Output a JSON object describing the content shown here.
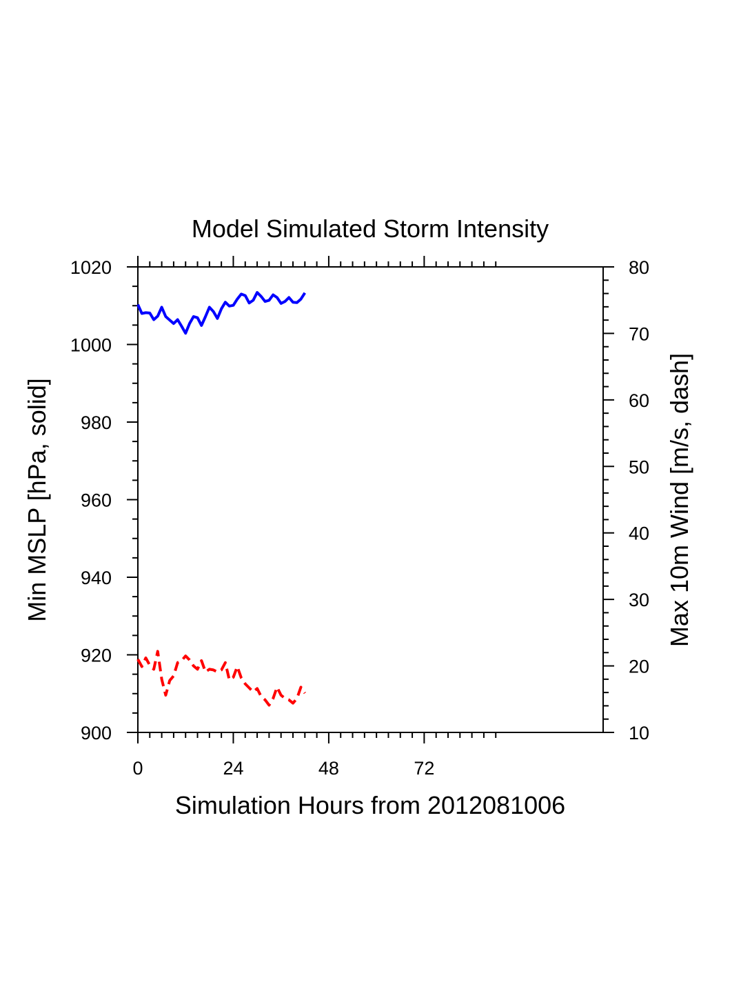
{
  "chart_data": {
    "type": "line",
    "title": "Model Simulated Storm Intensity",
    "xlabel": "Simulation Hours from 2012081006",
    "ylabel_left": "Min MSLP  [hPa, solid]",
    "ylabel_right": "Max 10m Wind  [m/s, dash]",
    "xlim": [
      0,
      117
    ],
    "ylim_left": [
      900,
      1020
    ],
    "ylim_right": [
      10,
      80
    ],
    "x_ticks": [
      0,
      24,
      48,
      72
    ],
    "y_left_ticks": [
      900,
      920,
      940,
      960,
      980,
      1000,
      1020
    ],
    "y_right_ticks": [
      10,
      20,
      30,
      40,
      50,
      60,
      70,
      80
    ],
    "grid": false,
    "series": [
      {
        "axis": "left",
        "style": "solid",
        "color": "#0000ff",
        "x": [
          0,
          1,
          2,
          3,
          4,
          5,
          6,
          7,
          8,
          9,
          10,
          11,
          12,
          13,
          14,
          15,
          16,
          17,
          18,
          19,
          20,
          21,
          22,
          23,
          24,
          25,
          26,
          27,
          28,
          29,
          30,
          31,
          32,
          33,
          34,
          35,
          36,
          37,
          38,
          39,
          40,
          41,
          42
        ],
        "values": [
          1010.3,
          1008.0,
          1008.2,
          1008.1,
          1006.4,
          1007.3,
          1009.6,
          1007.2,
          1006.3,
          1005.4,
          1006.4,
          1004.7,
          1002.9,
          1005.4,
          1007.2,
          1006.9,
          1004.9,
          1007.2,
          1009.6,
          1008.5,
          1006.7,
          1009.2,
          1010.9,
          1009.9,
          1010.1,
          1011.7,
          1013.0,
          1012.6,
          1010.7,
          1011.4,
          1013.4,
          1012.4,
          1011.1,
          1011.4,
          1012.8,
          1012.1,
          1010.6,
          1011.1,
          1012.1,
          1010.9,
          1010.8,
          1011.7,
          1013.3
        ]
      },
      {
        "axis": "right",
        "style": "dash",
        "color": "#ff0000",
        "x": [
          0,
          1,
          2,
          3,
          4,
          5,
          6,
          7,
          8,
          9,
          10,
          11,
          12,
          13,
          14,
          15,
          16,
          17,
          18,
          19,
          20,
          21,
          22,
          23,
          24,
          25,
          26,
          27,
          28,
          29,
          30,
          31,
          32,
          33,
          34,
          35,
          36,
          37,
          38,
          39,
          40,
          41,
          42
        ],
        "values": [
          21.0,
          19.9,
          21.2,
          20.1,
          19.5,
          22.2,
          18.0,
          15.6,
          17.8,
          18.5,
          20.5,
          20.8,
          21.5,
          20.9,
          20.0,
          19.5,
          20.8,
          19.1,
          19.5,
          19.4,
          19.1,
          19.4,
          20.5,
          17.9,
          18.3,
          19.9,
          18.2,
          17.3,
          16.7,
          16.1,
          16.6,
          15.4,
          14.9,
          14.1,
          15.1,
          16.8,
          15.6,
          15.1,
          14.9,
          14.4,
          15.1,
          16.8,
          15.9
        ]
      }
    ]
  }
}
